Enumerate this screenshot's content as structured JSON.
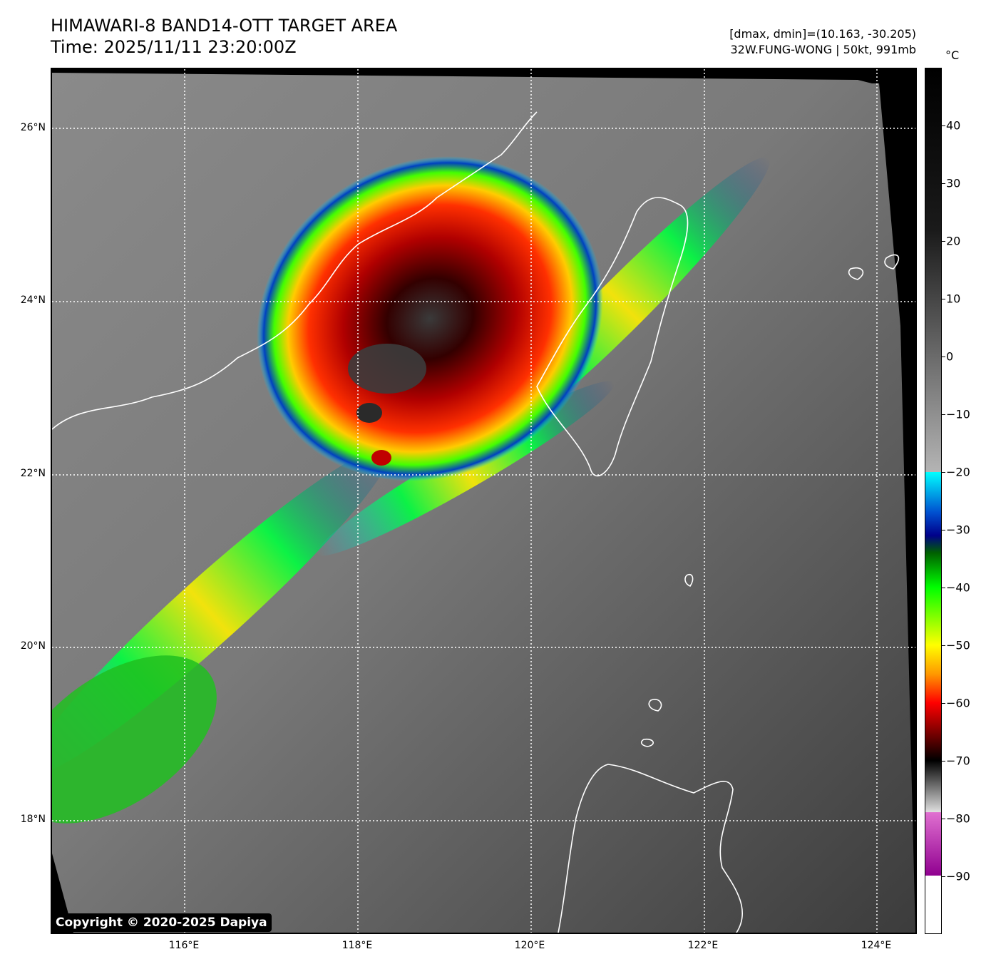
{
  "header": {
    "title_line1": "HIMAWARI-8 BAND14-OTT TARGET AREA",
    "title_line2": "Time: 2025/11/11 23:20:00Z",
    "info_line1": "[dmax, dmin]=(10.163, -30.205)",
    "info_line2": "32W.FUNG-WONG | 50kt, 991mb"
  },
  "map": {
    "lat_range": [
      16.6,
      26.6
    ],
    "lon_range": [
      114.5,
      124.5
    ],
    "lat_gridlines": [
      18,
      20,
      22,
      24,
      26
    ],
    "lon_gridlines": [
      116,
      118,
      120,
      122,
      124
    ],
    "lat_labels": [
      "18°N",
      "20°N",
      "22°N",
      "24°N",
      "26°N"
    ],
    "lon_labels": [
      "116°E",
      "118°E",
      "120°E",
      "122°E",
      "124°E"
    ],
    "gridline_style": "dotted white",
    "coastline_color": "#ffffff",
    "background": "grayscale infrared cloud imagery with color-enhanced cold cloud tops",
    "copyright": "Copyright © 2020-2025 Dapiya"
  },
  "colorbar": {
    "unit": "°C",
    "range": [
      -100,
      50
    ],
    "ticks": [
      40,
      30,
      20,
      10,
      0,
      -10,
      -20,
      -30,
      -40,
      -50,
      -60,
      -70,
      -80,
      -90
    ],
    "tick_labels": [
      "40",
      "30",
      "20",
      "10",
      "0",
      "−10",
      "−20",
      "−30",
      "−40",
      "−50",
      "−60",
      "−70",
      "−80",
      "−90"
    ],
    "stops": [
      {
        "t": 50,
        "color": "#000000"
      },
      {
        "t": 22,
        "color": "#1a1a1a"
      },
      {
        "t": -20,
        "color": "#b4b4b4"
      },
      {
        "t": -20.01,
        "color": "#00ffff"
      },
      {
        "t": -27,
        "color": "#0050d0"
      },
      {
        "t": -31,
        "color": "#00008a"
      },
      {
        "t": -34,
        "color": "#006000"
      },
      {
        "t": -40,
        "color": "#00ff00"
      },
      {
        "t": -50,
        "color": "#ffff00"
      },
      {
        "t": -55,
        "color": "#ff9900"
      },
      {
        "t": -60,
        "color": "#ff0000"
      },
      {
        "t": -66,
        "color": "#660000"
      },
      {
        "t": -70,
        "color": "#000000"
      },
      {
        "t": -79,
        "color": "#e0e0e0"
      },
      {
        "t": -79.01,
        "color": "#e070d0"
      },
      {
        "t": -90,
        "color": "#900090"
      },
      {
        "t": -90.01,
        "color": "#ffffff"
      },
      {
        "t": -100,
        "color": "#ffffff"
      }
    ]
  }
}
